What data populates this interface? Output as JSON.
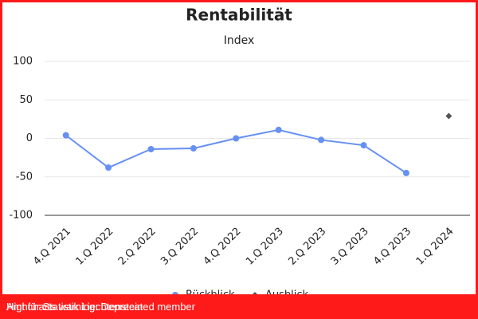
{
  "chart_data": {
    "type": "line",
    "title": "Rentabilität",
    "subtitle": "Index",
    "categories": [
      "4.Q 2021",
      "1.Q 2022",
      "2.Q 2022",
      "3.Q 2022",
      "4.Q 2022",
      "1.Q 2023",
      "2.Q 2023",
      "3.Q 2023",
      "4.Q 2023",
      "1.Q 2024"
    ],
    "series": [
      {
        "name": "Rückblick",
        "color": "#6690f2",
        "marker": "circle",
        "values": [
          4,
          -38,
          -14,
          -13,
          0,
          11,
          -2,
          -9,
          -45,
          null
        ]
      },
      {
        "name": "Ausblick",
        "color": "#555555",
        "marker": "diamond",
        "values": [
          null,
          null,
          null,
          null,
          null,
          null,
          null,
          null,
          null,
          29
        ]
      }
    ],
    "ylim": [
      -100,
      100
    ],
    "yticks": [
      -100,
      -50,
      0,
      50,
      100
    ],
    "grid": true,
    "credits": "Amt für Statistik Liechtenstein"
  },
  "warning": "Highcharts warning: Deprecated member"
}
